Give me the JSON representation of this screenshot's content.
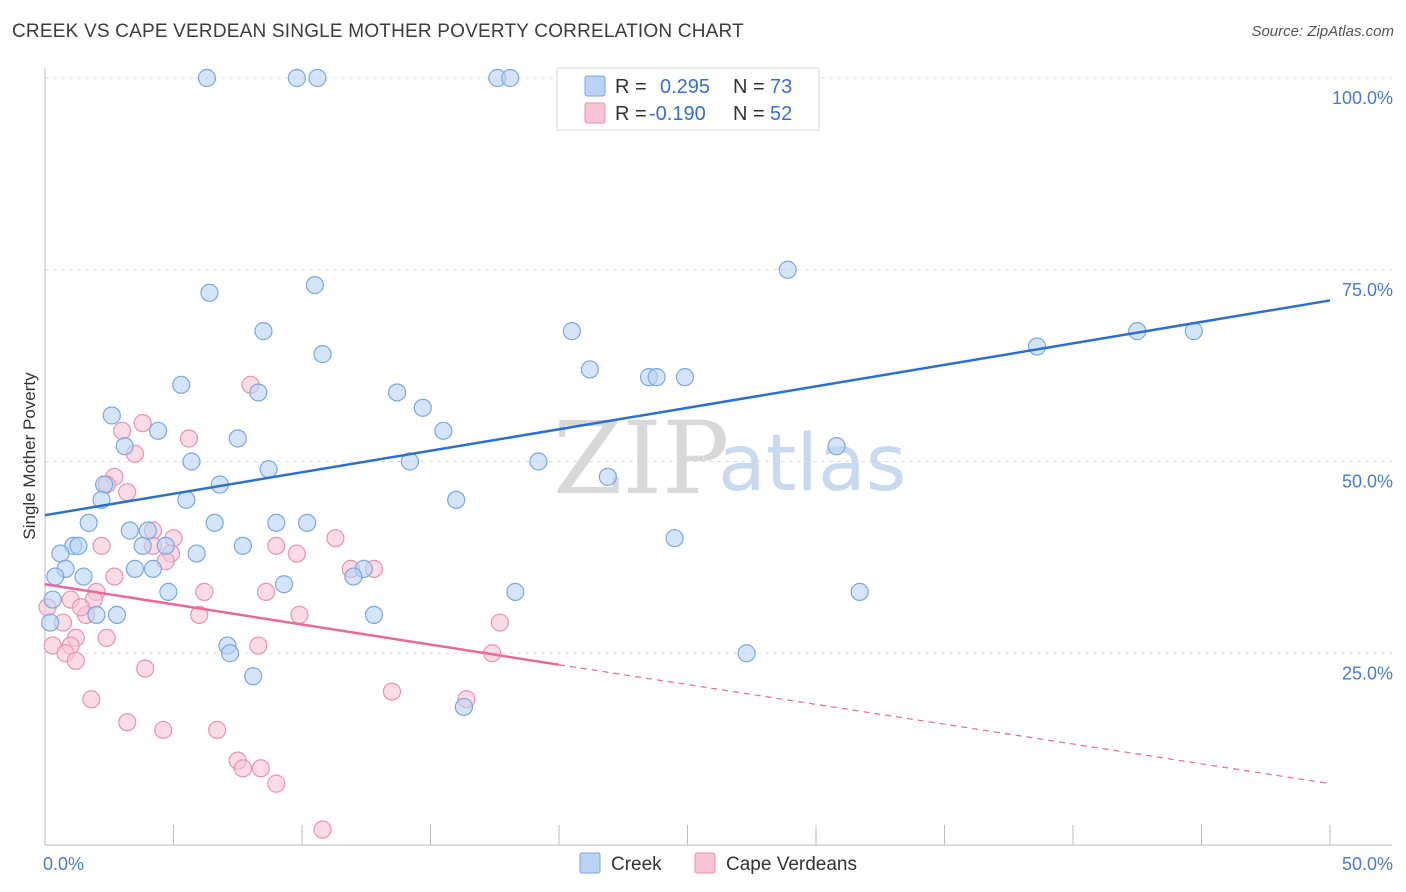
{
  "header": {
    "title": "CREEK VS CAPE VERDEAN SINGLE MOTHER POVERTY CORRELATION CHART",
    "source": "Source: ZipAtlas.com"
  },
  "watermark": {
    "zip": "ZIP",
    "atlas": "atlas"
  },
  "legend": {
    "r_label": "R =",
    "n_label": "N =",
    "rows": [
      {
        "series": "Creek",
        "r": "0.295",
        "n": "73"
      },
      {
        "series": "Cape Verdeans",
        "r": "-0.190",
        "n": "52"
      }
    ]
  },
  "bottom_legend": [
    "Creek",
    "Cape Verdeans"
  ],
  "colors": {
    "creek_fill": "#b9d3f5",
    "creek_stroke": "#7aa7e0",
    "creek_line": "#2b6fd1",
    "cape_fill": "#f8c4d5",
    "cape_stroke": "#eb92b0",
    "cape_line": "#e8699a"
  },
  "chart_data": {
    "type": "scatter",
    "title": "CREEK VS CAPE VERDEAN SINGLE MOTHER POVERTY CORRELATION CHART",
    "xlabel": "",
    "ylabel": "Single Mother Poverty",
    "xlim": [
      0,
      0.5
    ],
    "ylim": [
      0,
      1.0
    ],
    "x_tick_labels": [
      "0.0%",
      "50.0%"
    ],
    "y_ticks": [
      0.25,
      0.5,
      0.75,
      1.0
    ],
    "y_tick_labels": [
      "25.0%",
      "50.0%",
      "75.0%",
      "100.0%"
    ],
    "grid": true,
    "legend_position": "top-center",
    "series": [
      {
        "name": "Creek",
        "trend": {
          "x": [
            0,
            0.5
          ],
          "y": [
            0.43,
            0.71
          ]
        },
        "points": [
          [
            0.063,
            1.0
          ],
          [
            0.098,
            1.0
          ],
          [
            0.106,
            1.0
          ],
          [
            0.176,
            1.0
          ],
          [
            0.181,
            1.0
          ],
          [
            0.289,
            0.75
          ],
          [
            0.105,
            0.73
          ],
          [
            0.064,
            0.72
          ],
          [
            0.085,
            0.67
          ],
          [
            0.108,
            0.64
          ],
          [
            0.205,
            0.67
          ],
          [
            0.447,
            0.67
          ],
          [
            0.386,
            0.65
          ],
          [
            0.425,
            0.67
          ],
          [
            0.212,
            0.62
          ],
          [
            0.235,
            0.61
          ],
          [
            0.238,
            0.61
          ],
          [
            0.249,
            0.61
          ],
          [
            0.053,
            0.6
          ],
          [
            0.083,
            0.59
          ],
          [
            0.137,
            0.59
          ],
          [
            0.147,
            0.57
          ],
          [
            0.155,
            0.54
          ],
          [
            0.026,
            0.56
          ],
          [
            0.031,
            0.52
          ],
          [
            0.044,
            0.54
          ],
          [
            0.075,
            0.53
          ],
          [
            0.057,
            0.5
          ],
          [
            0.087,
            0.49
          ],
          [
            0.142,
            0.5
          ],
          [
            0.192,
            0.5
          ],
          [
            0.308,
            0.52
          ],
          [
            0.068,
            0.47
          ],
          [
            0.023,
            0.47
          ],
          [
            0.219,
            0.48
          ],
          [
            0.022,
            0.45
          ],
          [
            0.055,
            0.45
          ],
          [
            0.16,
            0.45
          ],
          [
            0.017,
            0.42
          ],
          [
            0.033,
            0.41
          ],
          [
            0.04,
            0.41
          ],
          [
            0.066,
            0.42
          ],
          [
            0.09,
            0.42
          ],
          [
            0.102,
            0.42
          ],
          [
            0.011,
            0.39
          ],
          [
            0.013,
            0.39
          ],
          [
            0.038,
            0.39
          ],
          [
            0.047,
            0.39
          ],
          [
            0.059,
            0.38
          ],
          [
            0.077,
            0.39
          ],
          [
            0.245,
            0.4
          ],
          [
            0.006,
            0.38
          ],
          [
            0.008,
            0.36
          ],
          [
            0.015,
            0.35
          ],
          [
            0.035,
            0.36
          ],
          [
            0.042,
            0.36
          ],
          [
            0.093,
            0.34
          ],
          [
            0.124,
            0.36
          ],
          [
            0.12,
            0.35
          ],
          [
            0.183,
            0.33
          ],
          [
            0.317,
            0.33
          ],
          [
            0.048,
            0.33
          ],
          [
            0.004,
            0.35
          ],
          [
            0.02,
            0.3
          ],
          [
            0.028,
            0.3
          ],
          [
            0.128,
            0.3
          ],
          [
            0.071,
            0.26
          ],
          [
            0.072,
            0.25
          ],
          [
            0.081,
            0.22
          ],
          [
            0.273,
            0.25
          ],
          [
            0.163,
            0.18
          ],
          [
            0.003,
            0.32
          ],
          [
            0.002,
            0.29
          ]
        ]
      },
      {
        "name": "Cape Verdeans",
        "trend": {
          "x": [
            0,
            0.2
          ],
          "y": [
            0.34,
            0.235
          ]
        },
        "trend_extension": {
          "x": [
            0.2,
            0.5
          ],
          "y": [
            0.235,
            0.08
          ]
        },
        "points": [
          [
            0.08,
            0.6
          ],
          [
            0.038,
            0.55
          ],
          [
            0.03,
            0.54
          ],
          [
            0.056,
            0.53
          ],
          [
            0.035,
            0.51
          ],
          [
            0.027,
            0.48
          ],
          [
            0.024,
            0.47
          ],
          [
            0.032,
            0.46
          ],
          [
            0.042,
            0.41
          ],
          [
            0.113,
            0.4
          ],
          [
            0.042,
            0.39
          ],
          [
            0.05,
            0.4
          ],
          [
            0.09,
            0.39
          ],
          [
            0.022,
            0.39
          ],
          [
            0.049,
            0.38
          ],
          [
            0.098,
            0.38
          ],
          [
            0.047,
            0.37
          ],
          [
            0.119,
            0.36
          ],
          [
            0.128,
            0.36
          ],
          [
            0.027,
            0.35
          ],
          [
            0.02,
            0.33
          ],
          [
            0.062,
            0.33
          ],
          [
            0.086,
            0.33
          ],
          [
            0.019,
            0.32
          ],
          [
            0.01,
            0.32
          ],
          [
            0.016,
            0.3
          ],
          [
            0.014,
            0.31
          ],
          [
            0.06,
            0.3
          ],
          [
            0.099,
            0.3
          ],
          [
            0.177,
            0.29
          ],
          [
            0.007,
            0.29
          ],
          [
            0.012,
            0.27
          ],
          [
            0.024,
            0.27
          ],
          [
            0.01,
            0.26
          ],
          [
            0.083,
            0.26
          ],
          [
            0.003,
            0.26
          ],
          [
            0.008,
            0.25
          ],
          [
            0.174,
            0.25
          ],
          [
            0.012,
            0.24
          ],
          [
            0.039,
            0.23
          ],
          [
            0.135,
            0.2
          ],
          [
            0.018,
            0.19
          ],
          [
            0.164,
            0.19
          ],
          [
            0.032,
            0.16
          ],
          [
            0.067,
            0.15
          ],
          [
            0.046,
            0.15
          ],
          [
            0.075,
            0.11
          ],
          [
            0.077,
            0.1
          ],
          [
            0.084,
            0.1
          ],
          [
            0.09,
            0.08
          ],
          [
            0.108,
            0.02
          ],
          [
            0.001,
            0.31
          ]
        ]
      }
    ]
  }
}
